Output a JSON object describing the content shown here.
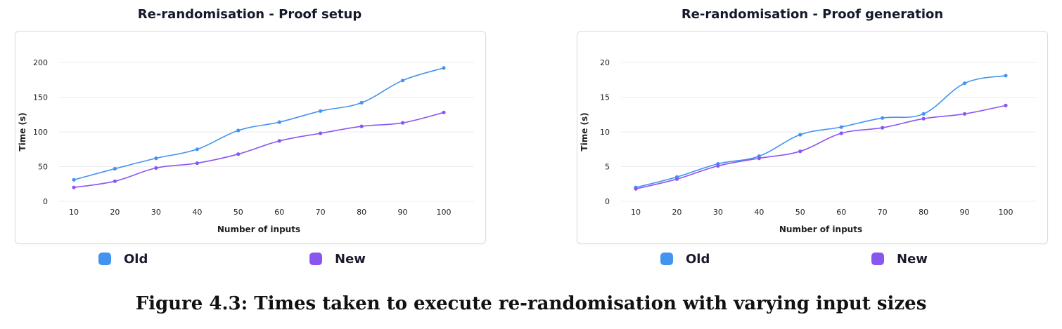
{
  "caption": "Figure 4.3: Times taken to execute re-randomisation with varying input sizes",
  "legend": [
    {
      "name": "Old",
      "color": "#4393f0"
    },
    {
      "name": "New",
      "color": "#8a56f0"
    }
  ],
  "chart_data": [
    {
      "type": "line",
      "title": "Re-randomisation - Proof setup",
      "xlabel": "Number of inputs",
      "ylabel": "Time (s)",
      "categories": [
        "10",
        "20",
        "30",
        "40",
        "50",
        "60",
        "70",
        "80",
        "90",
        "100"
      ],
      "yticks": [
        0,
        50,
        100,
        150,
        200
      ],
      "ylim": [
        0,
        200
      ],
      "grid": true,
      "series": [
        {
          "name": "Old",
          "color": "#4393f0",
          "values": [
            31,
            47,
            62,
            75,
            102,
            114,
            130,
            142,
            174,
            192
          ]
        },
        {
          "name": "New",
          "color": "#8a56f0",
          "values": [
            20,
            29,
            48,
            55,
            68,
            87,
            98,
            108,
            113,
            128
          ]
        }
      ]
    },
    {
      "type": "line",
      "title": "Re-randomisation - Proof generation",
      "xlabel": "Number of inputs",
      "ylabel": "Time (s)",
      "categories": [
        "10",
        "20",
        "30",
        "40",
        "50",
        "60",
        "70",
        "80",
        "90",
        "100"
      ],
      "yticks": [
        0,
        5,
        10,
        15,
        20
      ],
      "ylim": [
        0,
        20
      ],
      "grid": true,
      "series": [
        {
          "name": "Old",
          "color": "#4393f0",
          "values": [
            2.0,
            3.5,
            5.4,
            6.5,
            9.6,
            10.7,
            12.0,
            12.6,
            17.0,
            18.1
          ]
        },
        {
          "name": "New",
          "color": "#8a56f0",
          "values": [
            1.8,
            3.2,
            5.1,
            6.2,
            7.2,
            9.8,
            10.6,
            11.9,
            12.6,
            13.8
          ]
        }
      ]
    }
  ]
}
